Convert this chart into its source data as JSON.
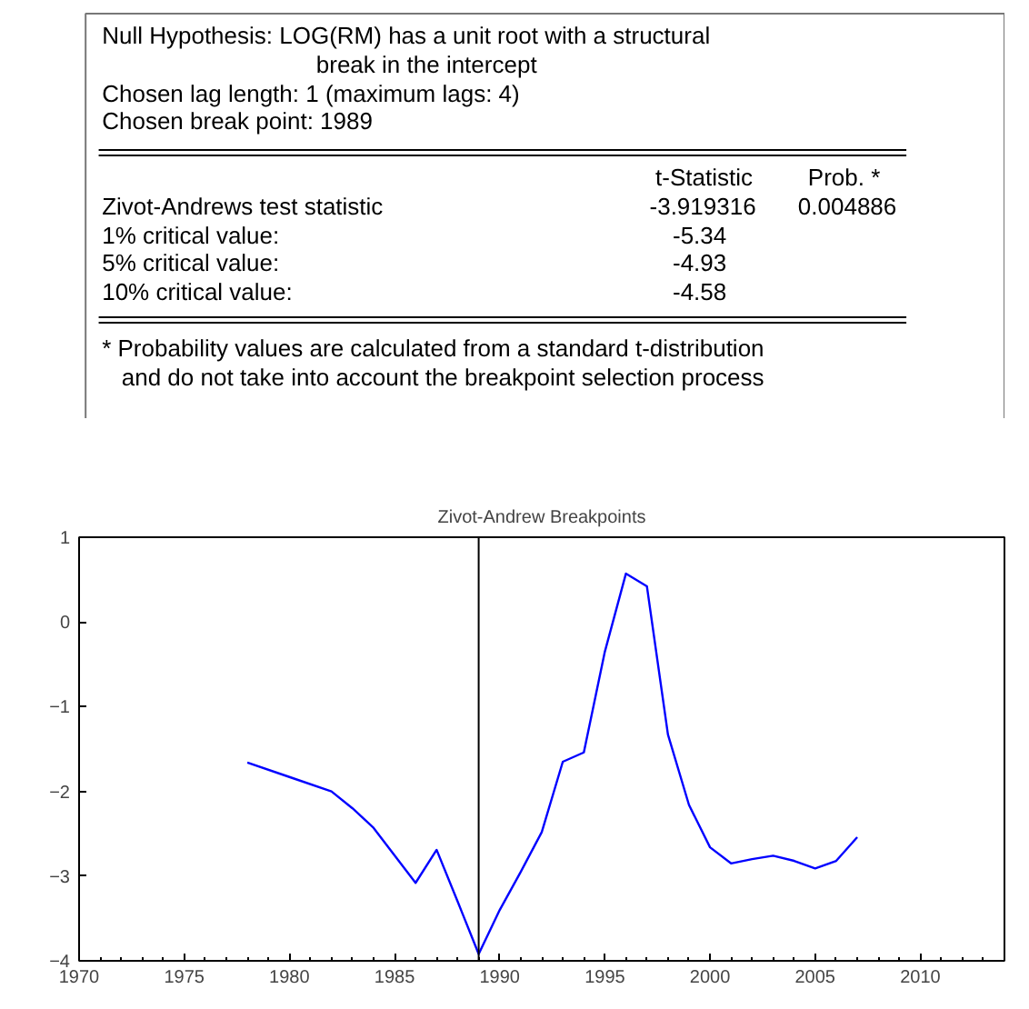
{
  "chart_data": [
    {
      "type": "other",
      "annotations": [
        "Null Hypothesis: LOG(RM) has a unit root with a structural",
        "break in the intercept",
        "Chosen lag length: 1 (maximum lags: 4)",
        "Chosen break point: 1989",
        "t-Statistic",
        "Prob. *",
        "Zivot-Andrews test statistic",
        "-3.919316",
        "0.004886",
        "1% critical value:",
        "-5.34",
        "5% critical value:",
        "-4.93",
        "10% critical value:",
        "-4.58",
        "* Probability values are calculated from a standard t-distribution",
        "and do not take into account the breakpoint selection process"
      ]
    },
    {
      "type": "line",
      "title": "Zivot-Andrew Breakpoints",
      "x": [
        1978,
        1980,
        1982,
        1983,
        1984,
        1986,
        1987,
        1988,
        1989,
        1990,
        1991,
        1992,
        1993,
        1994,
        1995,
        1996,
        1997,
        1998,
        1999,
        2000,
        2001,
        2002,
        2003,
        2004,
        2005,
        2006,
        2007
      ],
      "series": [
        {
          "color": "#0000ff",
          "values": [
            -1.66,
            -1.83,
            -2.0,
            -2.2,
            -2.43,
            -3.08,
            -2.69,
            -3.3,
            -3.92,
            -3.4,
            -2.95,
            -2.48,
            -1.65,
            -1.54,
            -0.35,
            0.57,
            0.42,
            -1.33,
            -2.16,
            -2.66,
            -2.85,
            -2.8,
            -2.76,
            -2.82,
            -2.91,
            -2.82,
            -2.54
          ]
        }
      ],
      "xlim": [
        1970,
        2014
      ],
      "xticks": [
        1970,
        1975,
        1980,
        1985,
        1990,
        1995,
        2000,
        2005,
        2010
      ],
      "ylim": [
        -4,
        1
      ],
      "yticks": [
        -4,
        -3,
        -2,
        -1,
        0,
        1
      ],
      "ref_lines": [
        {
          "axis": "x",
          "value": 1989,
          "color": "#000000"
        }
      ],
      "grid": false,
      "marker": "none",
      "line_style": "solid"
    }
  ]
}
